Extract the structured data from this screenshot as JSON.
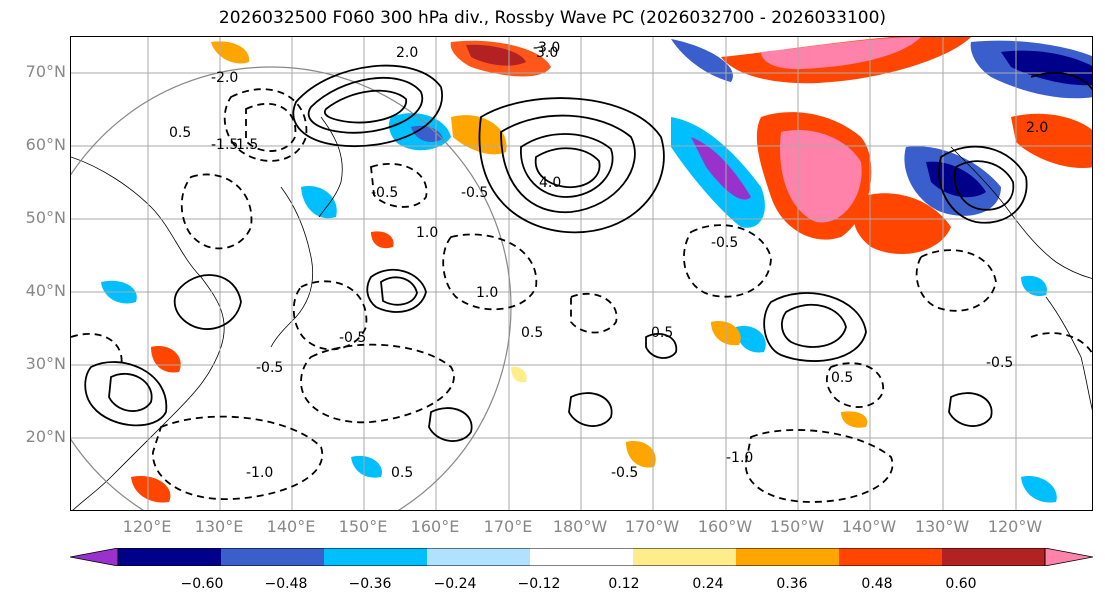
{
  "title": "2026032500 F060 300 hPa div., Rossby Wave PC (2026032700 - 2026033100)",
  "lat_labels": [
    "70°N",
    "60°N",
    "50°N",
    "40°N",
    "30°N",
    "20°N"
  ],
  "lon_labels": [
    "120°E",
    "130°E",
    "140°E",
    "150°E",
    "160°E",
    "170°E",
    "180°W",
    "170°W",
    "160°W",
    "150°W",
    "140°W",
    "130°W",
    "120°W"
  ],
  "colorbar": {
    "colors": [
      "#9932cc",
      "#00008b",
      "#3a5fcd",
      "#00bfff",
      "#b0e2ff",
      "#ffffff",
      "#ffec8b",
      "#ffa500",
      "#ff4500",
      "#b22222",
      "#ff82ab"
    ],
    "tick_labels": [
      "−0.60",
      "−0.48",
      "−0.36",
      "−0.24",
      "−0.12",
      "0.12",
      "0.24",
      "0.36",
      "0.48",
      "0.60"
    ]
  },
  "contour_labels": [
    "0.5",
    "1.0",
    "1.5",
    "2.0",
    "3.0",
    "4.0",
    "-0.5",
    "-1.0",
    "-1.5",
    "-2.0",
    "-3.0",
    "-0.5",
    "0.5",
    "1.0",
    "-0.5",
    "0.5",
    "-1.0",
    "-0.5",
    "0.5",
    "-0.5",
    "2.0",
    "-0.5",
    "0.5",
    "-0.5"
  ]
}
